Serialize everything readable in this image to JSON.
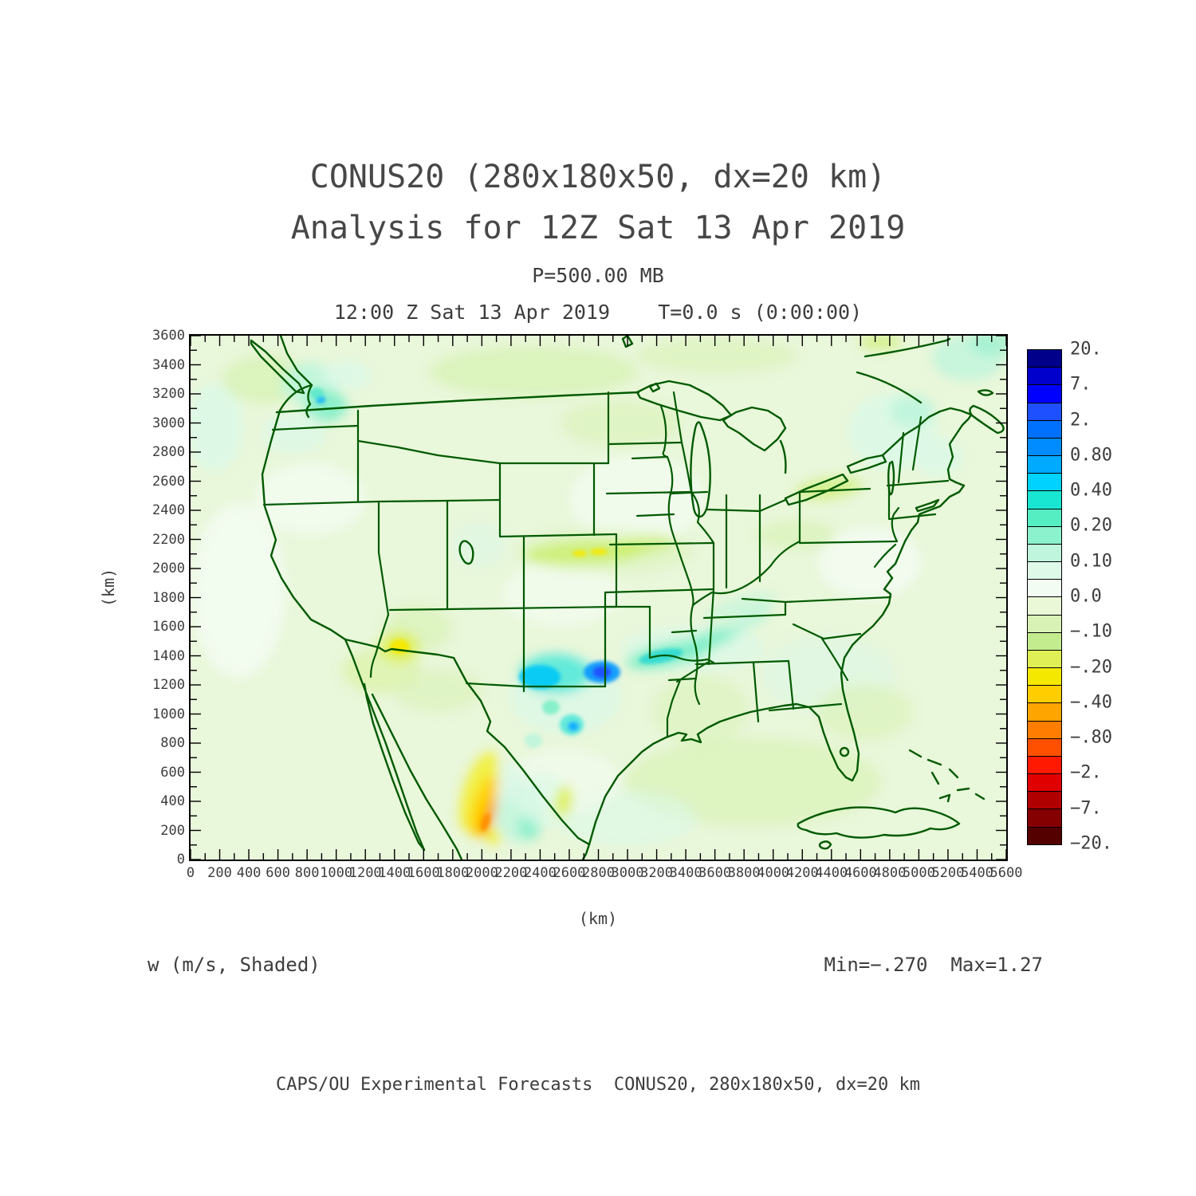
{
  "title_line1": "CONUS20 (280x180x50, dx=20 km)",
  "title_line2": "Analysis for 12Z Sat 13 Apr 2019",
  "pressure_line": "P=500.00 MB",
  "time_line": "12:00 Z Sat 13 Apr 2019    T=0.0 s (0:00:00)",
  "axes": {
    "x_label": "(km)",
    "y_label": "(km)",
    "x_ticks": [
      "0",
      "200",
      "400",
      "600",
      "800",
      "1000",
      "1200",
      "1400",
      "1600",
      "1800",
      "2000",
      "2200",
      "2400",
      "2600",
      "2800",
      "3000",
      "3200",
      "3400",
      "3600",
      "3800",
      "4000",
      "4200",
      "4400",
      "4600",
      "4800",
      "5000",
      "5200",
      "5400",
      "5600"
    ],
    "y_ticks": [
      "3600",
      "3400",
      "3200",
      "3000",
      "2800",
      "2600",
      "2400",
      "2200",
      "2000",
      "1800",
      "1600",
      "1400",
      "1200",
      "1000",
      "800",
      "600",
      "400",
      "200",
      "0"
    ]
  },
  "colorbar": {
    "labels": [
      "20.",
      "7.",
      "2.",
      "0.80",
      "0.40",
      "0.20",
      "0.10",
      "0.0",
      "−.10",
      "−.20",
      "−.40",
      "−.80",
      "−2.",
      "−7.",
      "−20."
    ],
    "colors": [
      "#00008b",
      "#0000cd",
      "#0000ff",
      "#1e50ff",
      "#0070ff",
      "#008cff",
      "#00aaff",
      "#00d2ff",
      "#19e6d2",
      "#55eec3",
      "#8cf2cd",
      "#bef5dc",
      "#dff9e8",
      "#f2fcf2",
      "#eaf8d8",
      "#d8f2b6",
      "#c3ec8f",
      "#dfef55",
      "#f5e800",
      "#ffcd00",
      "#ffa500",
      "#ff7d00",
      "#ff5000",
      "#ff1900",
      "#e00000",
      "#b00000",
      "#850000",
      "#550000"
    ]
  },
  "annotations": {
    "field_label": "w (m/s, Shaded)",
    "minmax": "Min=−.270  Max=1.27",
    "footer": "CAPS/OU Experimental Forecasts  CONUS20, 280x180x50, dx=20 km"
  },
  "map": {
    "outline_color": "#005a00",
    "base_fill": "#e9f7da",
    "frame_color": "#000000"
  },
  "chart_data": {
    "type": "heatmap",
    "title": "CONUS20 (280x180x50, dx=20 km)",
    "subtitle": "Analysis for 12Z Sat 13 Apr 2019",
    "field": "w (m/s, Shaded)",
    "pressure_level_mb": 500.0,
    "valid_time": "12:00 Z Sat 13 Apr 2019",
    "model_time": "T=0.0 s (0:00:00)",
    "xlabel": "(km)",
    "ylabel": "(km)",
    "xlim": [
      0,
      5600
    ],
    "ylim": [
      0,
      3600
    ],
    "x_tick_step_km": 200,
    "y_tick_step_km": 200,
    "grid": false,
    "legend_position": "right",
    "min": -0.27,
    "max": 1.27,
    "levels": [
      20,
      7,
      2,
      0.8,
      0.4,
      0.2,
      0.1,
      0.0,
      -0.1,
      -0.2,
      -0.4,
      -0.8,
      -2,
      -7,
      -20
    ],
    "notable_features": [
      {
        "label": "strong updraft core, max ~1.27 m/s, north Texas / Red River",
        "x_km": 2820,
        "y_km": 1290,
        "w_ms": 1.27
      },
      {
        "label": "cyan updraft band over Arkansas / Mid-South",
        "x_km": 3340,
        "y_km": 1420,
        "w_ms": 0.3
      },
      {
        "label": "yellow/orange descent band, lee of Sierra Madre (Mexico), min ~-0.27 m/s",
        "x_km": 2030,
        "y_km": 310,
        "w_ms": -0.27
      },
      {
        "label": "subsidence spot over southern Nevada",
        "x_km": 1430,
        "y_km": 1470,
        "w_ms": -0.2
      },
      {
        "label": "weak updraft patches, Pacific Northwest",
        "x_km": 880,
        "y_km": 3190,
        "w_ms": 0.2
      },
      {
        "label": "weak updraft patches, New England / Maritimes",
        "x_km": 4950,
        "y_km": 2950,
        "w_ms": 0.15
      },
      {
        "label": "yellow-green descent streak, Nebraska / Kansas border",
        "x_km": 2710,
        "y_km": 2110,
        "w_ms": -0.2
      }
    ]
  }
}
